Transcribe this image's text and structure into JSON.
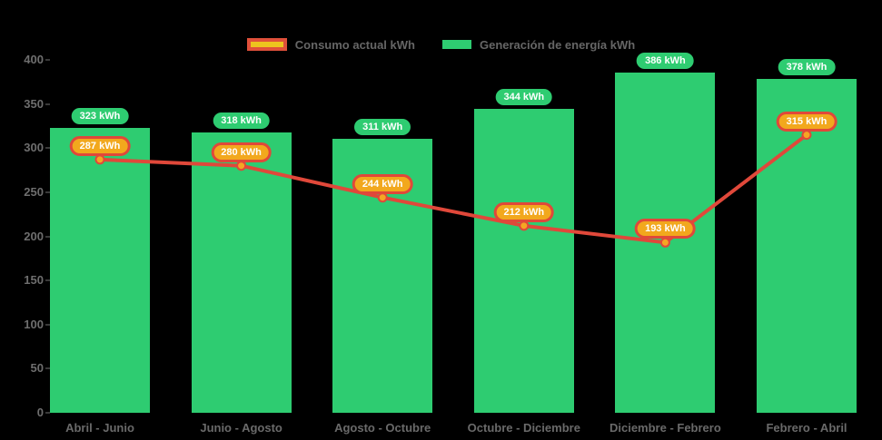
{
  "background": "#000000",
  "text_color": "#6a6a6a",
  "legend": {
    "position": "top",
    "items": [
      {
        "label": "Consumo actual kWh",
        "swatch_fill": "#edc41e",
        "swatch_border": "#e0503a",
        "kind": "line"
      },
      {
        "label": "Generación de energía kWh",
        "swatch_fill": "#2ecc71",
        "swatch_border": null,
        "kind": "bar"
      }
    ]
  },
  "chart_data": {
    "type": "bar",
    "subtype": "bar-with-line-overlay",
    "title": "",
    "xlabel": "",
    "ylabel": "",
    "unit": "kWh",
    "categories": [
      "Abril - Junio",
      "Junio - Agosto",
      "Agosto - Octubre",
      "Octubre - Diciembre",
      "Diciembre - Febrero",
      "Febrero - Abril"
    ],
    "series": [
      {
        "name": "Generación de energía kWh",
        "kind": "bar",
        "color": "#2ecc71",
        "values": [
          323,
          318,
          311,
          344,
          386,
          378
        ],
        "point_labels": [
          "323 kWh",
          "318 kWh",
          "311 kWh",
          "344 kWh",
          "386 kWh",
          "378 kWh"
        ],
        "label_style": {
          "bg": "#2ecc71",
          "text": "#ffffff"
        }
      },
      {
        "name": "Consumo actual kWh",
        "kind": "line",
        "color": "#e0483a",
        "marker_fill": "#f5a623",
        "marker_stroke": "#e0483a",
        "values": [
          287,
          280,
          244,
          212,
          193,
          315
        ],
        "point_labels": [
          "287 kWh",
          "280 kWh",
          "244 kWh",
          "212 kWh",
          "193 kWh",
          "315 kWh"
        ],
        "label_style": {
          "bg": "#f2a81d",
          "border": "#e0483a",
          "text": "#ffffff"
        }
      }
    ],
    "ylim": [
      0,
      400
    ],
    "yticks": [
      400,
      350,
      300,
      250,
      200,
      150,
      100,
      50,
      0
    ],
    "grid": false,
    "legend_position": "top"
  }
}
